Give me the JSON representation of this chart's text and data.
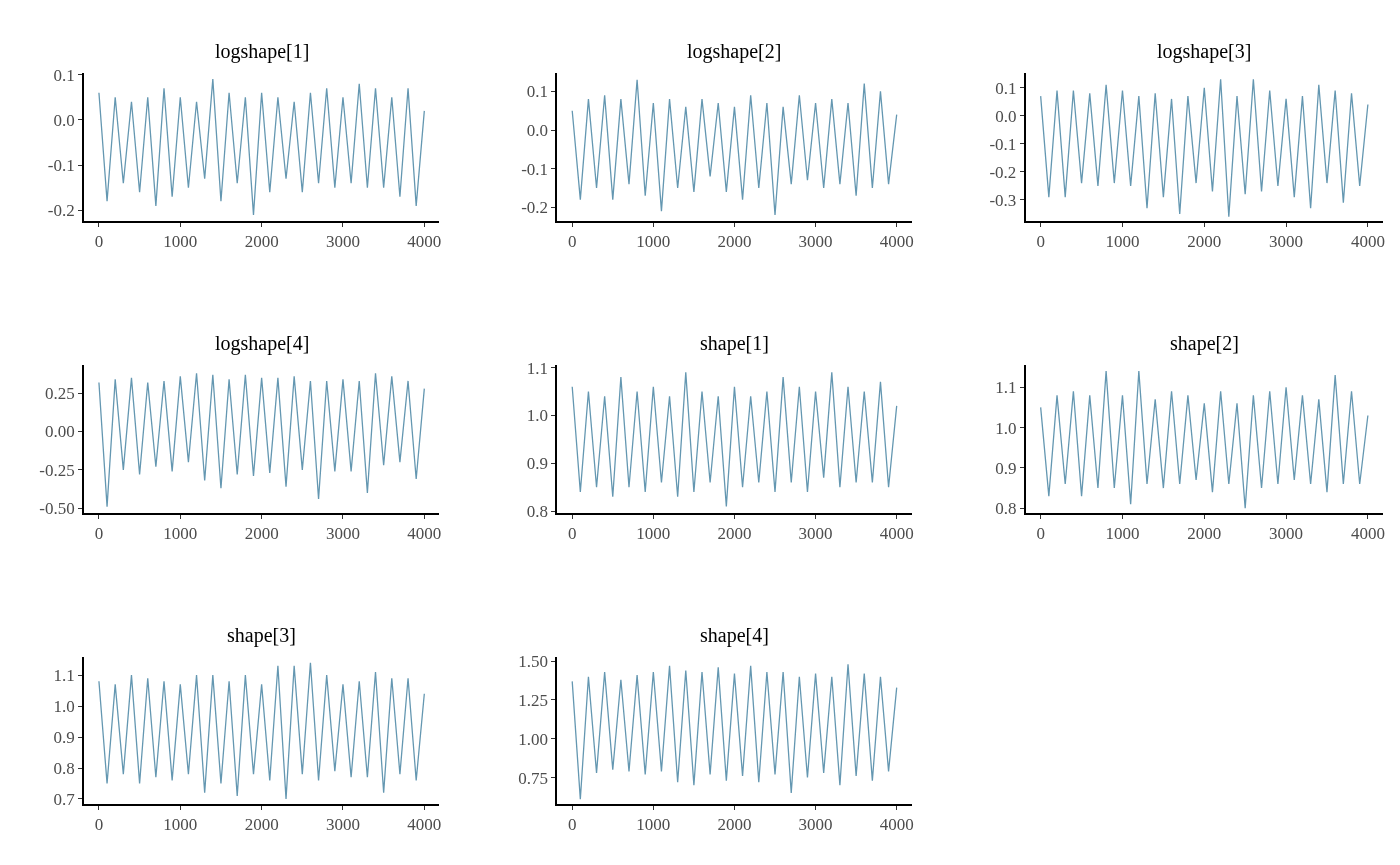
{
  "chart_data": [
    {
      "type": "line",
      "title": "logshape[1]",
      "x": [
        0,
        100,
        200,
        300,
        400,
        500,
        600,
        700,
        800,
        900,
        1000,
        1100,
        1200,
        1300,
        1400,
        1500,
        1600,
        1700,
        1800,
        1900,
        2000,
        2100,
        2200,
        2300,
        2400,
        2500,
        2600,
        2700,
        2800,
        2900,
        3000,
        3100,
        3200,
        3300,
        3400,
        3500,
        3600,
        3700,
        3800,
        3900,
        4000
      ],
      "xlim": [
        -185,
        4185
      ],
      "xticks": [
        0,
        1000,
        2000,
        3000,
        4000
      ],
      "ylim": [
        -0.224,
        0.104
      ],
      "yticks": [
        {
          "value": -0.2,
          "label": "-0.2"
        },
        {
          "value": -0.1,
          "label": "-0.1"
        },
        {
          "value": 0,
          "label": "0.0"
        },
        {
          "value": 0.1,
          "label": "0.1"
        }
      ],
      "grid": false,
      "series": [
        {
          "color": "#6497b1",
          "values": [
            0.06,
            -0.18,
            0.05,
            -0.14,
            0.04,
            -0.16,
            0.05,
            -0.19,
            0.07,
            -0.17,
            0.05,
            -0.15,
            0.04,
            -0.13,
            0.09,
            -0.18,
            0.06,
            -0.14,
            0.05,
            -0.21,
            0.06,
            -0.16,
            0.05,
            -0.13,
            0.04,
            -0.16,
            0.06,
            -0.14,
            0.07,
            -0.15,
            0.05,
            -0.14,
            0.08,
            -0.15,
            0.07,
            -0.15,
            0.05,
            -0.17,
            0.07,
            -0.19,
            0.02
          ]
        }
      ]
    },
    {
      "type": "line",
      "title": "logshape[2]",
      "x": [
        0,
        100,
        200,
        300,
        400,
        500,
        600,
        700,
        800,
        900,
        1000,
        1100,
        1200,
        1300,
        1400,
        1500,
        1600,
        1700,
        1800,
        1900,
        2000,
        2100,
        2200,
        2300,
        2400,
        2500,
        2600,
        2700,
        2800,
        2900,
        3000,
        3100,
        3200,
        3300,
        3400,
        3500,
        3600,
        3700,
        3800,
        3900,
        4000
      ],
      "xlim": [
        -185,
        4185
      ],
      "xticks": [
        0,
        1000,
        2000,
        3000,
        4000
      ],
      "ylim": [
        -0.236,
        0.148
      ],
      "yticks": [
        {
          "value": -0.2,
          "label": "-0.2"
        },
        {
          "value": -0.1,
          "label": "-0.1"
        },
        {
          "value": 0,
          "label": "0.0"
        },
        {
          "value": 0.1,
          "label": "0.1"
        }
      ],
      "grid": false,
      "series": [
        {
          "color": "#6497b1",
          "values": [
            0.05,
            -0.18,
            0.08,
            -0.15,
            0.09,
            -0.18,
            0.08,
            -0.14,
            0.13,
            -0.17,
            0.07,
            -0.21,
            0.08,
            -0.15,
            0.06,
            -0.16,
            0.08,
            -0.12,
            0.07,
            -0.16,
            0.06,
            -0.18,
            0.09,
            -0.15,
            0.07,
            -0.22,
            0.06,
            -0.14,
            0.09,
            -0.13,
            0.07,
            -0.15,
            0.08,
            -0.14,
            0.07,
            -0.17,
            0.12,
            -0.15,
            0.1,
            -0.14,
            0.04
          ]
        }
      ]
    },
    {
      "type": "line",
      "title": "logshape[3]",
      "x": [
        0,
        100,
        200,
        300,
        400,
        500,
        600,
        700,
        800,
        900,
        1000,
        1100,
        1200,
        1300,
        1400,
        1500,
        1600,
        1700,
        1800,
        1900,
        2000,
        2100,
        2200,
        2300,
        2400,
        2500,
        2600,
        2700,
        2800,
        2900,
        3000,
        3100,
        3200,
        3300,
        3400,
        3500,
        3600,
        3700,
        3800,
        3900,
        4000
      ],
      "xlim": [
        -185,
        4185
      ],
      "xticks": [
        0,
        1000,
        2000,
        3000,
        4000
      ],
      "ylim": [
        -0.376,
        0.153
      ],
      "yticks": [
        {
          "value": -0.3,
          "label": "-0.3"
        },
        {
          "value": -0.2,
          "label": "-0.2"
        },
        {
          "value": -0.1,
          "label": "-0.1"
        },
        {
          "value": 0,
          "label": "0.0"
        },
        {
          "value": 0.1,
          "label": "0.1"
        }
      ],
      "grid": false,
      "series": [
        {
          "color": "#6497b1",
          "values": [
            0.07,
            -0.29,
            0.09,
            -0.29,
            0.09,
            -0.24,
            0.08,
            -0.25,
            0.11,
            -0.24,
            0.09,
            -0.25,
            0.07,
            -0.33,
            0.08,
            -0.29,
            0.06,
            -0.35,
            0.07,
            -0.24,
            0.1,
            -0.27,
            0.13,
            -0.36,
            0.07,
            -0.28,
            0.13,
            -0.27,
            0.09,
            -0.25,
            0.06,
            -0.29,
            0.07,
            -0.33,
            0.11,
            -0.24,
            0.09,
            -0.31,
            0.08,
            -0.25,
            0.04
          ]
        }
      ]
    },
    {
      "type": "line",
      "title": "logshape[4]",
      "x": [
        0,
        100,
        200,
        300,
        400,
        500,
        600,
        700,
        800,
        900,
        1000,
        1100,
        1200,
        1300,
        1400,
        1500,
        1600,
        1700,
        1800,
        1900,
        2000,
        2100,
        2200,
        2300,
        2400,
        2500,
        2600,
        2700,
        2800,
        2900,
        3000,
        3100,
        3200,
        3300,
        3400,
        3500,
        3600,
        3700,
        3800,
        3900,
        4000
      ],
      "xlim": [
        -185,
        4185
      ],
      "xticks": [
        0,
        1000,
        2000,
        3000,
        4000
      ],
      "ylim": [
        -0.532,
        0.436
      ],
      "yticks": [
        {
          "value": -0.5,
          "label": "-0.50"
        },
        {
          "value": -0.25,
          "label": "-0.25"
        },
        {
          "value": 0,
          "label": "0.00"
        },
        {
          "value": 0.25,
          "label": "0.25"
        }
      ],
      "grid": false,
      "series": [
        {
          "color": "#6497b1",
          "values": [
            0.32,
            -0.49,
            0.34,
            -0.25,
            0.35,
            -0.28,
            0.32,
            -0.23,
            0.33,
            -0.26,
            0.36,
            -0.2,
            0.38,
            -0.32,
            0.37,
            -0.37,
            0.34,
            -0.28,
            0.37,
            -0.29,
            0.35,
            -0.27,
            0.35,
            -0.36,
            0.36,
            -0.25,
            0.33,
            -0.44,
            0.33,
            -0.26,
            0.34,
            -0.26,
            0.33,
            -0.4,
            0.38,
            -0.22,
            0.36,
            -0.2,
            0.33,
            -0.31,
            0.28
          ]
        }
      ]
    },
    {
      "type": "line",
      "title": "shape[1]",
      "x": [
        0,
        100,
        200,
        300,
        400,
        500,
        600,
        700,
        800,
        900,
        1000,
        1100,
        1200,
        1300,
        1400,
        1500,
        1600,
        1700,
        1800,
        1900,
        2000,
        2100,
        2200,
        2300,
        2400,
        2500,
        2600,
        2700,
        2800,
        2900,
        3000,
        3100,
        3200,
        3300,
        3400,
        3500,
        3600,
        3700,
        3800,
        3900,
        4000
      ],
      "xlim": [
        -185,
        4185
      ],
      "xticks": [
        0,
        1000,
        2000,
        3000,
        4000
      ],
      "ylim": [
        0.796,
        1.106
      ],
      "yticks": [
        {
          "value": 0.8,
          "label": "0.8"
        },
        {
          "value": 0.9,
          "label": "0.9"
        },
        {
          "value": 1,
          "label": "1.0"
        },
        {
          "value": 1.1,
          "label": "1.1"
        }
      ],
      "grid": false,
      "series": [
        {
          "color": "#6497b1",
          "values": [
            1.06,
            0.84,
            1.05,
            0.85,
            1.04,
            0.83,
            1.08,
            0.85,
            1.05,
            0.84,
            1.06,
            0.86,
            1.04,
            0.83,
            1.09,
            0.84,
            1.05,
            0.86,
            1.04,
            0.81,
            1.06,
            0.85,
            1.04,
            0.86,
            1.05,
            0.84,
            1.08,
            0.86,
            1.06,
            0.84,
            1.05,
            0.87,
            1.09,
            0.85,
            1.06,
            0.86,
            1.05,
            0.86,
            1.07,
            0.85,
            1.02
          ]
        }
      ]
    },
    {
      "type": "line",
      "title": "shape[2]",
      "x": [
        0,
        100,
        200,
        300,
        400,
        500,
        600,
        700,
        800,
        900,
        1000,
        1100,
        1200,
        1300,
        1400,
        1500,
        1600,
        1700,
        1800,
        1900,
        2000,
        2100,
        2200,
        2300,
        2400,
        2500,
        2600,
        2700,
        2800,
        2900,
        3000,
        3100,
        3200,
        3300,
        3400,
        3500,
        3600,
        3700,
        3800,
        3900,
        4000
      ],
      "xlim": [
        -185,
        4185
      ],
      "xticks": [
        0,
        1000,
        2000,
        3000,
        4000
      ],
      "ylim": [
        0.788,
        1.156
      ],
      "yticks": [
        {
          "value": 0.8,
          "label": "0.8"
        },
        {
          "value": 0.9,
          "label": "0.9"
        },
        {
          "value": 1,
          "label": "1.0"
        },
        {
          "value": 1.1,
          "label": "1.1"
        }
      ],
      "grid": false,
      "series": [
        {
          "color": "#6497b1",
          "values": [
            1.05,
            0.83,
            1.08,
            0.86,
            1.09,
            0.83,
            1.08,
            0.85,
            1.14,
            0.85,
            1.08,
            0.81,
            1.14,
            0.86,
            1.07,
            0.85,
            1.09,
            0.86,
            1.08,
            0.87,
            1.06,
            0.84,
            1.09,
            0.86,
            1.06,
            0.8,
            1.08,
            0.85,
            1.09,
            0.86,
            1.1,
            0.87,
            1.08,
            0.86,
            1.07,
            0.84,
            1.13,
            0.86,
            1.09,
            0.86,
            1.03
          ]
        }
      ]
    },
    {
      "type": "line",
      "title": "shape[3]",
      "x": [
        0,
        100,
        200,
        300,
        400,
        500,
        600,
        700,
        800,
        900,
        1000,
        1100,
        1200,
        1300,
        1400,
        1500,
        1600,
        1700,
        1800,
        1900,
        2000,
        2100,
        2200,
        2300,
        2400,
        2500,
        2600,
        2700,
        2800,
        2900,
        3000,
        3100,
        3200,
        3300,
        3400,
        3500,
        3600,
        3700,
        3800,
        3900,
        4000
      ],
      "xlim": [
        -185,
        4185
      ],
      "xticks": [
        0,
        1000,
        2000,
        3000,
        4000
      ],
      "ylim": [
        0.684,
        1.16
      ],
      "yticks": [
        {
          "value": 0.7,
          "label": "0.7"
        },
        {
          "value": 0.8,
          "label": "0.8"
        },
        {
          "value": 0.9,
          "label": "0.9"
        },
        {
          "value": 1,
          "label": "1.0"
        },
        {
          "value": 1.1,
          "label": "1.1"
        }
      ],
      "grid": false,
      "series": [
        {
          "color": "#6497b1",
          "values": [
            1.08,
            0.75,
            1.07,
            0.78,
            1.1,
            0.75,
            1.09,
            0.77,
            1.08,
            0.76,
            1.07,
            0.78,
            1.1,
            0.72,
            1.1,
            0.75,
            1.08,
            0.71,
            1.1,
            0.78,
            1.07,
            0.76,
            1.13,
            0.7,
            1.13,
            0.78,
            1.14,
            0.76,
            1.1,
            0.79,
            1.07,
            0.77,
            1.08,
            0.77,
            1.11,
            0.72,
            1.09,
            0.78,
            1.09,
            0.76,
            1.04
          ]
        }
      ]
    },
    {
      "type": "line",
      "title": "shape[4]",
      "x": [
        0,
        100,
        200,
        300,
        400,
        500,
        600,
        700,
        800,
        900,
        1000,
        1100,
        1200,
        1300,
        1400,
        1500,
        1600,
        1700,
        1800,
        1900,
        2000,
        2100,
        2200,
        2300,
        2400,
        2500,
        2600,
        2700,
        2800,
        2900,
        3000,
        3100,
        3200,
        3300,
        3400,
        3500,
        3600,
        3700,
        3800,
        3900,
        4000
      ],
      "xlim": [
        -185,
        4185
      ],
      "xticks": [
        0,
        1000,
        2000,
        3000,
        4000
      ],
      "ylim": [
        0.58,
        1.53
      ],
      "yticks": [
        {
          "value": 0.75,
          "label": "0.75"
        },
        {
          "value": 1,
          "label": "1.00"
        },
        {
          "value": 1.25,
          "label": "1.25"
        },
        {
          "value": 1.5,
          "label": "1.50"
        }
      ],
      "grid": false,
      "series": [
        {
          "color": "#6497b1",
          "values": [
            1.37,
            0.61,
            1.4,
            0.78,
            1.43,
            0.8,
            1.38,
            0.79,
            1.41,
            0.77,
            1.43,
            0.79,
            1.47,
            0.72,
            1.44,
            0.7,
            1.43,
            0.77,
            1.46,
            0.73,
            1.42,
            0.76,
            1.47,
            0.72,
            1.43,
            0.77,
            1.43,
            0.65,
            1.4,
            0.75,
            1.42,
            0.78,
            1.4,
            0.7,
            1.48,
            0.76,
            1.42,
            0.73,
            1.4,
            0.79,
            1.33
          ]
        }
      ]
    }
  ]
}
